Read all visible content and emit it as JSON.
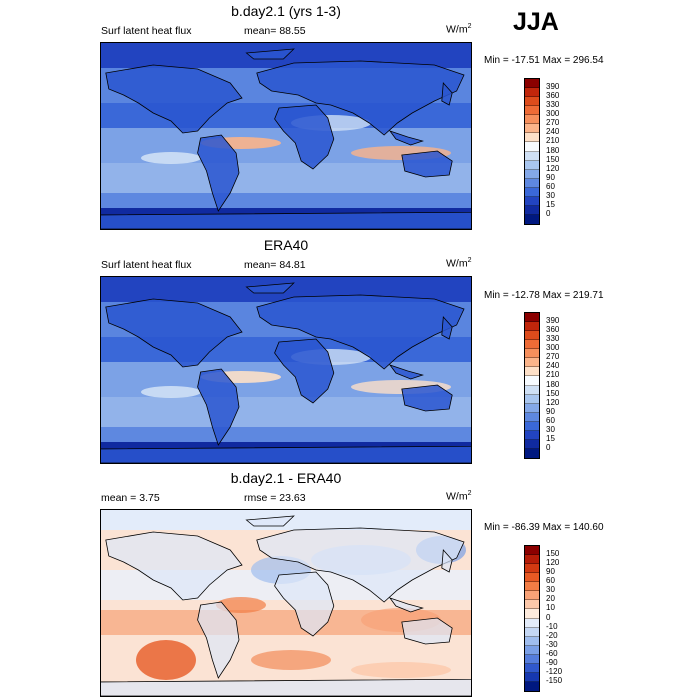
{
  "season": "JJA",
  "panels": [
    {
      "title": "b.day2.1 (yrs 1-3)",
      "left_label": "Surf latent heat flux",
      "center_label": "mean=  88.55",
      "units": "W/m",
      "units_sup": "2",
      "minmax": "Min = -17.51 Max = 296.54",
      "colorbar_levels": [
        "390",
        "360",
        "330",
        "300",
        "270",
        "240",
        "210",
        "180",
        "150",
        "120",
        "90",
        "60",
        "30",
        "15",
        "0"
      ],
      "colorbar_colors": [
        "#8b0000",
        "#c1260b",
        "#dd4c1c",
        "#ee6b36",
        "#f68f5c",
        "#fbb48a",
        "#fde0c8",
        "#f7fbff",
        "#cfe0f5",
        "#a9c6ef",
        "#84a8e8",
        "#5e88e0",
        "#3a68d8",
        "#2244c0",
        "#102aa0",
        "#001880"
      ],
      "map_style": "model"
    },
    {
      "title": "ERA40",
      "left_label": "Surf latent heat flux",
      "center_label": "mean=  84.81",
      "units": "W/m",
      "units_sup": "2",
      "minmax": "Min = -12.78 Max = 219.71",
      "colorbar_levels": [
        "390",
        "360",
        "330",
        "300",
        "270",
        "240",
        "210",
        "180",
        "150",
        "120",
        "90",
        "60",
        "30",
        "15",
        "0"
      ],
      "colorbar_colors": [
        "#8b0000",
        "#c1260b",
        "#dd4c1c",
        "#ee6b36",
        "#f68f5c",
        "#fbb48a",
        "#fde0c8",
        "#f7fbff",
        "#cfe0f5",
        "#a9c6ef",
        "#84a8e8",
        "#5e88e0",
        "#3a68d8",
        "#2244c0",
        "#102aa0",
        "#001880"
      ],
      "map_style": "obs"
    },
    {
      "title": "b.day2.1 - ERA40",
      "left_label": "mean =   3.75",
      "center_label": "rmse =  23.63",
      "units": "W/m",
      "units_sup": "2",
      "minmax": "Min = -86.39 Max = 140.60",
      "colorbar_levels": [
        "150",
        "120",
        "90",
        "60",
        "30",
        "20",
        "10",
        "0",
        "-10",
        "-20",
        "-30",
        "-60",
        "-90",
        "-120",
        "-150"
      ],
      "colorbar_colors": [
        "#8b0000",
        "#b51c08",
        "#d23a12",
        "#e75a24",
        "#f27d45",
        "#f8a277",
        "#fcc8aa",
        "#fdebdd",
        "#e3ecfa",
        "#c4d7f4",
        "#9fbdee",
        "#7a9fe6",
        "#557ddc",
        "#3058cc",
        "#1638b0",
        "#001880"
      ],
      "map_style": "diff"
    }
  ]
}
